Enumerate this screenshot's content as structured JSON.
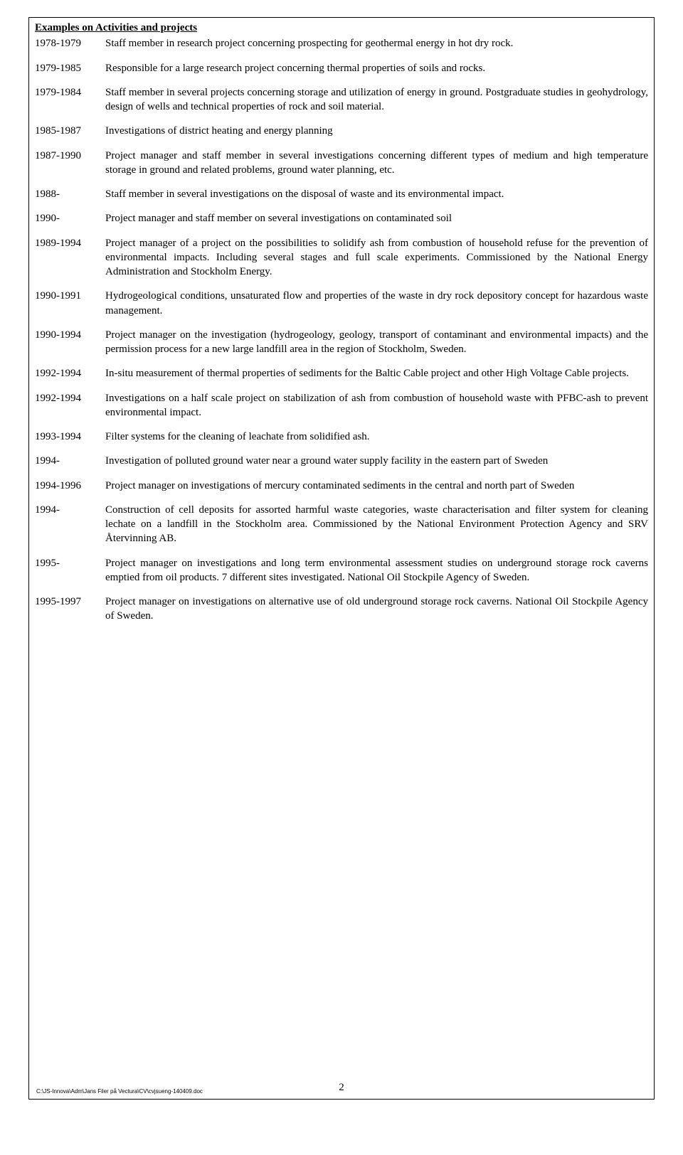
{
  "sectionTitle": "Examples on Activities and projects",
  "entries": [
    {
      "year": "1978-1979",
      "desc": "Staff member in research project concerning prospecting for geothermal energy in hot dry rock."
    },
    {
      "year": "1979-1985",
      "desc": "Responsible for a large research project concerning thermal properties of soils and rocks."
    },
    {
      "year": "1979-1984",
      "desc": "Staff member in several projects concerning storage and utilization of energy in ground. Postgraduate studies in geohydrology, design of wells and technical properties of rock and soil material."
    },
    {
      "year": "1985-1987",
      "desc": "Investigations of district heating and energy planning"
    },
    {
      "year": "1987-1990",
      "desc": "Project manager and staff member in several investigations concerning different types of medium and high temperature storage in ground and related problems, ground water planning, etc."
    },
    {
      "year": "1988-",
      "desc": "Staff member in several investigations on the disposal of waste and its environmental impact."
    },
    {
      "year": "1990-",
      "desc": "Project manager and staff member on several investigations on contaminated soil"
    },
    {
      "year": "1989-1994",
      "desc": "Project manager of a project on the possibilities to solidify ash from combustion of household refuse for the prevention of environmental impacts. Including several stages and full scale experiments. Commissioned by the National Energy Administration and Stockholm Energy."
    },
    {
      "year": "1990-1991",
      "desc": "Hydrogeological conditions, unsaturated flow and properties of the waste in dry rock depository concept for hazardous waste management."
    },
    {
      "year": "1990-1994",
      "desc": "Project manager on the investigation (hydrogeology, geology, transport of contaminant and environmental impacts) and the permission process for a new large landfill area in the region of Stockholm, Sweden."
    },
    {
      "year": "1992-1994",
      "desc": "In-situ measurement of thermal properties of sediments for the Baltic Cable project and other High Voltage Cable projects."
    },
    {
      "year": "1992-1994",
      "desc": "Investigations on a half scale project on stabilization of ash from combustion of household waste with PFBC-ash to prevent environmental impact."
    },
    {
      "year": "1993-1994",
      "desc": "Filter systems for the cleaning of leachate from solidified ash."
    },
    {
      "year": "1994-",
      "desc": "Investigation of polluted ground water near a ground water supply facility in the eastern part of Sweden"
    },
    {
      "year": "1994-1996",
      "desc": "Project manager on investigations of mercury contaminated sediments in the central and north part of Sweden"
    },
    {
      "year": "1994-",
      "desc": "Construction of cell deposits for assorted harmful waste categories, waste characterisation and filter system for cleaning lechate on a landfill in the Stockholm area. Commissioned by the National Environment Protection Agency and SRV Återvinning AB."
    },
    {
      "year": "1995-",
      "desc": "Project manager on investigations and long term environmental assessment studies on underground storage rock caverns emptied from oil products. 7 different sites investigated. National Oil Stockpile Agency of Sweden."
    },
    {
      "year": "1995-1997",
      "desc": "Project manager on investigations on alternative use of old underground storage rock caverns. National Oil Stockpile Agency of Sweden."
    }
  ],
  "pageNumber": "2",
  "footerPath": "C:\\JS-Innova\\Adm\\Jans Filer på Vectura\\CV\\cvjsueng-140409.doc"
}
